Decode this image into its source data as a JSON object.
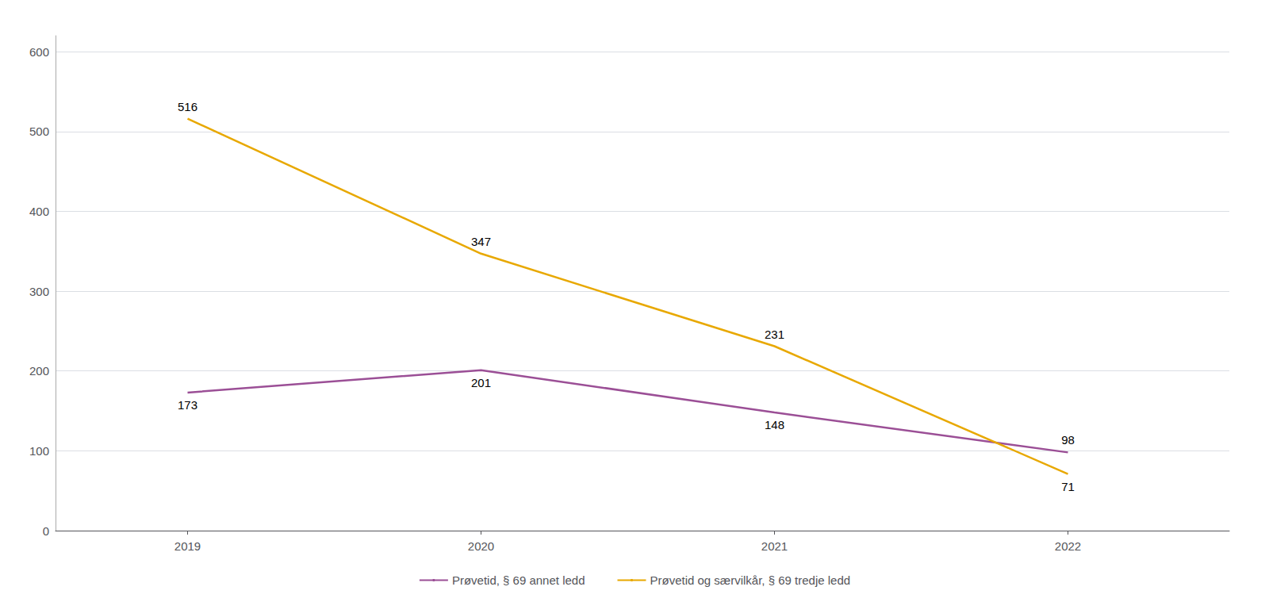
{
  "chart_data": {
    "type": "line",
    "x": [
      2019,
      2020,
      2021,
      2022
    ],
    "series": [
      {
        "name": "Prøvetid, § 69 annet ledd",
        "color": "#9b4f96",
        "values": [
          173,
          201,
          148,
          98
        ]
      },
      {
        "name": "Prøvetid og særvilkår, § 69 tredje ledd",
        "color": "#e8a800",
        "values": [
          516,
          347,
          231,
          71
        ]
      }
    ],
    "xlim": [
      2018.55,
      2022.55
    ],
    "xticks": [
      2019,
      2020,
      2021,
      2022
    ],
    "ylim": [
      0,
      620
    ],
    "yticks": [
      0,
      100,
      200,
      300,
      400,
      500,
      600
    ],
    "grid": true,
    "legend": "bottom",
    "data_labels": true
  }
}
